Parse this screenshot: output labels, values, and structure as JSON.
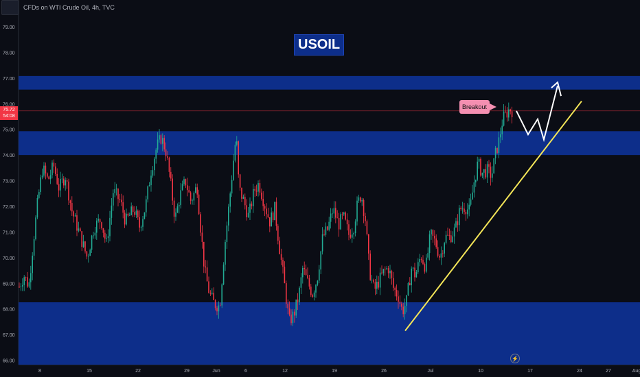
{
  "header": {
    "title": "CFDs on WTI Crude Oil, 4h, TVC"
  },
  "annotations": {
    "symbol_label": "USOIL",
    "breakout_label": "Breakout",
    "lightning_icon": "lightning-icon"
  },
  "price_tag": {
    "price": "75.72",
    "countdown": "54:08"
  },
  "colors": {
    "background": "#0b0d15",
    "zone": "#0d2e8a",
    "up_candle": "#22ab94",
    "down_candle": "#f23645",
    "trendline": "#f5e658",
    "projection": "#ffffff",
    "price_line": "#f23645",
    "breakout_tag": "#f48fb1"
  },
  "chart_data": {
    "type": "candlestick",
    "title": "CFDs on WTI Crude Oil, 4h, TVC",
    "interval": "4h",
    "ylim": [
      65.6,
      79.4
    ],
    "y_ticks": [
      "79.00",
      "78.00",
      "77.00",
      "76.00",
      "75.00",
      "74.00",
      "73.00",
      "72.00",
      "71.00",
      "70.00",
      "69.00",
      "68.00",
      "67.00",
      "66.00"
    ],
    "x_ticks": [
      "8",
      "15",
      "22",
      "29",
      "Jun",
      "6",
      "12",
      "19",
      "26",
      "Jul",
      "10",
      "17",
      "24",
      "27",
      "Aug"
    ],
    "current_price": 75.72,
    "zones": [
      {
        "low": 76.55,
        "high": 77.08
      },
      {
        "low": 74.0,
        "high": 74.93
      },
      {
        "low": 65.6,
        "high": 68.26
      }
    ],
    "trendline": {
      "from": [
        590,
        67.15
      ],
      "to": [
        847,
        76.1
      ]
    },
    "projection_path": [
      [
        752,
        75.72
      ],
      [
        769,
        74.8
      ],
      [
        783,
        75.4
      ],
      [
        792,
        74.6
      ],
      [
        812,
        76.7
      ]
    ],
    "close_path": [
      [
        27,
        68.8
      ],
      [
        35,
        69.3
      ],
      [
        42,
        68.9
      ],
      [
        48,
        70.5
      ],
      [
        55,
        72.2
      ],
      [
        62,
        73.5
      ],
      [
        70,
        73.0
      ],
      [
        78,
        73.6
      ],
      [
        86,
        72.7
      ],
      [
        95,
        73.2
      ],
      [
        105,
        71.8
      ],
      [
        115,
        71.0
      ],
      [
        127,
        70.0
      ],
      [
        137,
        71.2
      ],
      [
        147,
        71.5
      ],
      [
        155,
        70.5
      ],
      [
        165,
        72.6
      ],
      [
        175,
        72.2
      ],
      [
        183,
        71.4
      ],
      [
        195,
        71.9
      ],
      [
        203,
        71.2
      ],
      [
        212,
        72.0
      ],
      [
        220,
        73.4
      ],
      [
        228,
        74.3
      ],
      [
        235,
        74.7
      ],
      [
        242,
        74.1
      ],
      [
        248,
        73.0
      ],
      [
        255,
        71.5
      ],
      [
        262,
        72.4
      ],
      [
        270,
        73.0
      ],
      [
        278,
        72.2
      ],
      [
        287,
        72.8
      ],
      [
        292,
        71.2
      ],
      [
        298,
        69.5
      ],
      [
        305,
        68.6
      ],
      [
        312,
        68.2
      ],
      [
        320,
        68.1
      ],
      [
        327,
        70.4
      ],
      [
        334,
        72.2
      ],
      [
        340,
        73.8
      ],
      [
        344,
        74.8
      ],
      [
        348,
        72.7
      ],
      [
        355,
        72.2
      ],
      [
        362,
        71.6
      ],
      [
        370,
        72.6
      ],
      [
        377,
        72.9
      ],
      [
        385,
        72.1
      ],
      [
        393,
        71.4
      ],
      [
        400,
        71.9
      ],
      [
        407,
        70.4
      ],
      [
        414,
        69.0
      ],
      [
        421,
        67.5
      ],
      [
        428,
        67.8
      ],
      [
        435,
        68.5
      ],
      [
        441,
        69.6
      ],
      [
        447,
        69.1
      ],
      [
        455,
        68.6
      ],
      [
        462,
        69.2
      ],
      [
        470,
        70.8
      ],
      [
        477,
        71.1
      ],
      [
        485,
        71.9
      ],
      [
        493,
        71.3
      ],
      [
        500,
        71.6
      ],
      [
        508,
        70.9
      ],
      [
        515,
        71.2
      ],
      [
        520,
        72.0
      ],
      [
        526,
        72.5
      ],
      [
        532,
        71.5
      ],
      [
        538,
        69.5
      ],
      [
        545,
        68.7
      ],
      [
        552,
        69.1
      ],
      [
        560,
        69.5
      ],
      [
        566,
        69.6
      ],
      [
        573,
        68.8
      ],
      [
        580,
        68.5
      ],
      [
        586,
        67.9
      ],
      [
        592,
        68.3
      ],
      [
        599,
        69.6
      ],
      [
        605,
        69.3
      ],
      [
        613,
        70.1
      ],
      [
        620,
        69.6
      ],
      [
        627,
        70.9
      ],
      [
        634,
        70.6
      ],
      [
        641,
        70.0
      ],
      [
        648,
        70.8
      ],
      [
        655,
        70.8
      ],
      [
        663,
        71.1
      ],
      [
        670,
        71.9
      ],
      [
        677,
        72.0
      ],
      [
        684,
        71.8
      ],
      [
        690,
        72.9
      ],
      [
        696,
        73.7
      ],
      [
        702,
        73.3
      ],
      [
        709,
        73.4
      ],
      [
        716,
        73.2
      ],
      [
        722,
        74.1
      ],
      [
        727,
        74.6
      ],
      [
        732,
        75.4
      ],
      [
        737,
        75.6
      ],
      [
        742,
        75.8
      ],
      [
        747,
        75.72
      ]
    ]
  }
}
